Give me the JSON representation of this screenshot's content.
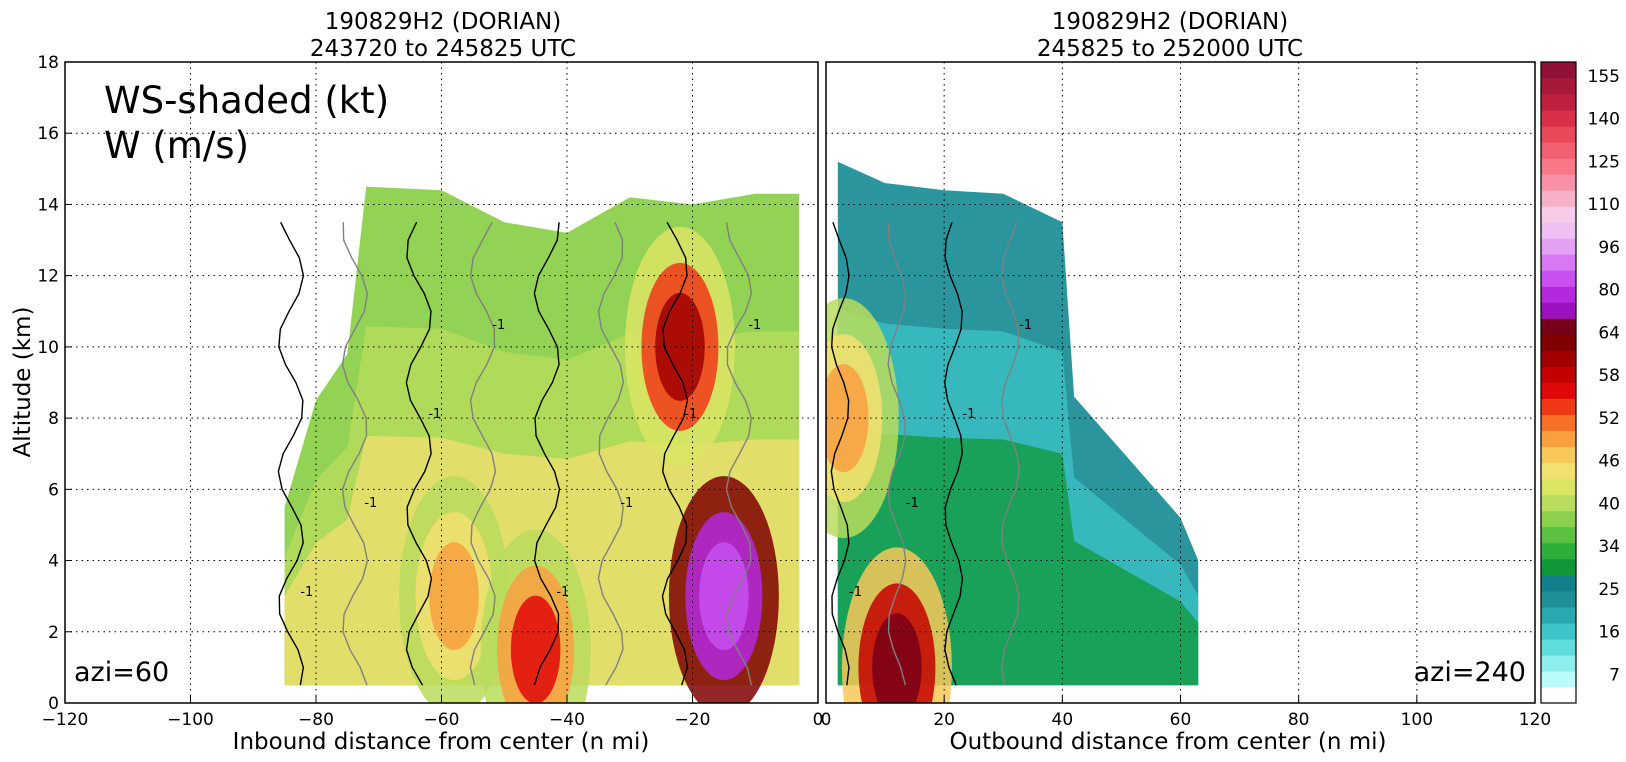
{
  "chart_data": [
    {
      "type": "heatmap",
      "title_line1": "190829H2 (DORIAN)",
      "title_line2": "243720 to 245825 UTC",
      "xlabel": "Inbound distance from center (n mi)",
      "ylabel": "Altitude (km)",
      "xlim": [
        -120,
        0
      ],
      "ylim": [
        0,
        18
      ],
      "xticks": [
        "−120",
        "−100",
        "−80",
        "−60",
        "−40",
        "−20",
        "0"
      ],
      "xtick_values": [
        -120,
        -100,
        -80,
        -60,
        -40,
        -20,
        0
      ],
      "yticks": [
        "0",
        "2",
        "4",
        "6",
        "8",
        "10",
        "12",
        "14",
        "16",
        "18"
      ],
      "ytick_values": [
        0,
        2,
        4,
        6,
        8,
        10,
        12,
        14,
        16,
        18
      ],
      "grid": true,
      "legend_text_line1": "WS-shaded (kt)",
      "legend_text_line2": "W (m/s)",
      "annotation": "azi=60",
      "contour_label": "-1",
      "echo_top_km": [
        [
          -85,
          5.5
        ],
        [
          -80,
          8.5
        ],
        [
          -75,
          9.8
        ],
        [
          -72,
          14.5
        ],
        [
          -60,
          14.4
        ],
        [
          -50,
          13.5
        ],
        [
          -40,
          13.2
        ],
        [
          -30,
          14.2
        ],
        [
          -20,
          14.0
        ],
        [
          -10,
          14.3
        ],
        [
          -3,
          14.3
        ]
      ],
      "wind_core": [
        {
          "x": -22,
          "y": 10.0,
          "ws": 60
        },
        {
          "x": -15,
          "y": 3.0,
          "ws": 80
        },
        {
          "x": -58,
          "y": 3.0,
          "ws": 50
        },
        {
          "x": -45,
          "y": 1.5,
          "ws": 55
        }
      ]
    },
    {
      "type": "heatmap",
      "title_line1": "190829H2 (DORIAN)",
      "title_line2": "245825 to 252000 UTC",
      "xlabel": "Outbound distance from center (n mi)",
      "ylabel": "",
      "xlim": [
        0,
        120
      ],
      "ylim": [
        0,
        18
      ],
      "xticks": [
        "0",
        "20",
        "40",
        "60",
        "80",
        "100",
        "120"
      ],
      "xtick_values": [
        0,
        20,
        40,
        60,
        80,
        100,
        120
      ],
      "grid": true,
      "annotation": "azi=240",
      "contour_label": "-1",
      "echo_top_km": [
        [
          2,
          15.2
        ],
        [
          10,
          14.6
        ],
        [
          20,
          14.4
        ],
        [
          30,
          14.3
        ],
        [
          40,
          13.5
        ],
        [
          42,
          8.6
        ],
        [
          60,
          5.2
        ],
        [
          63,
          4.0
        ]
      ],
      "wind_core": [
        {
          "x": 12,
          "y": 1.0,
          "ws": 64
        },
        {
          "x": 3,
          "y": 8.0,
          "ws": 50
        }
      ]
    }
  ],
  "colorbar": {
    "labels": [
      "155",
      "140",
      "125",
      "110",
      "96",
      "80",
      "64",
      "58",
      "52",
      "46",
      "40",
      "34",
      "25",
      "16",
      "7"
    ],
    "label_values": [
      155,
      140,
      125,
      110,
      96,
      80,
      64,
      58,
      52,
      46,
      40,
      34,
      25,
      16,
      7
    ],
    "colors_bottom_to_top": [
      "#ffffff",
      "#b8fcfc",
      "#8eeeee",
      "#5fdcdc",
      "#3cc4c8",
      "#2aa8b0",
      "#1f8f98",
      "#12808a",
      "#109838",
      "#2cb03a",
      "#5cc040",
      "#8cd04c",
      "#b8dc5c",
      "#dce464",
      "#f2e070",
      "#f8c858",
      "#f8a040",
      "#f87028",
      "#f03818",
      "#e00808",
      "#c40000",
      "#a00000",
      "#800000",
      "#780018",
      "#9c10c0",
      "#b428e0",
      "#c850f0",
      "#d878f4",
      "#e4a0f4",
      "#f0c0f4",
      "#f8cce8",
      "#f8b0c8",
      "#f890a8",
      "#f87888",
      "#f06070",
      "#e84858",
      "#d83048",
      "#c02040",
      "#a81838",
      "#901038"
    ]
  }
}
